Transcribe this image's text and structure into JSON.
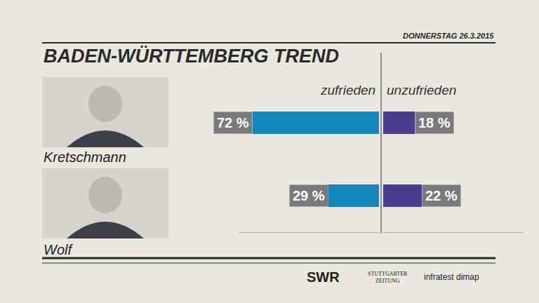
{
  "chart_data": {
    "type": "bar",
    "orientation": "horizontal",
    "title": "BADEN-WÜRTTEMBERG TREND",
    "subtitle": "DONNERSTAG 26.3.2015",
    "categories": [
      "Kretschmann",
      "Wolf"
    ],
    "series": [
      {
        "name": "zufrieden",
        "color": "#1287bd",
        "values": [
          72,
          29
        ],
        "value_labels": [
          "72 %",
          "29 %"
        ]
      },
      {
        "name": "unzufrieden",
        "color": "#4a3d8f",
        "values": [
          18,
          22
        ],
        "value_labels": [
          "18 %",
          "22 %"
        ]
      }
    ],
    "xlim": [
      0,
      80
    ],
    "data_labels": true,
    "tick_labels": false,
    "grid": false,
    "annotations": [
      "SWR",
      "STUTTGARTER ZEITUNG",
      "infratest dimap"
    ]
  }
}
